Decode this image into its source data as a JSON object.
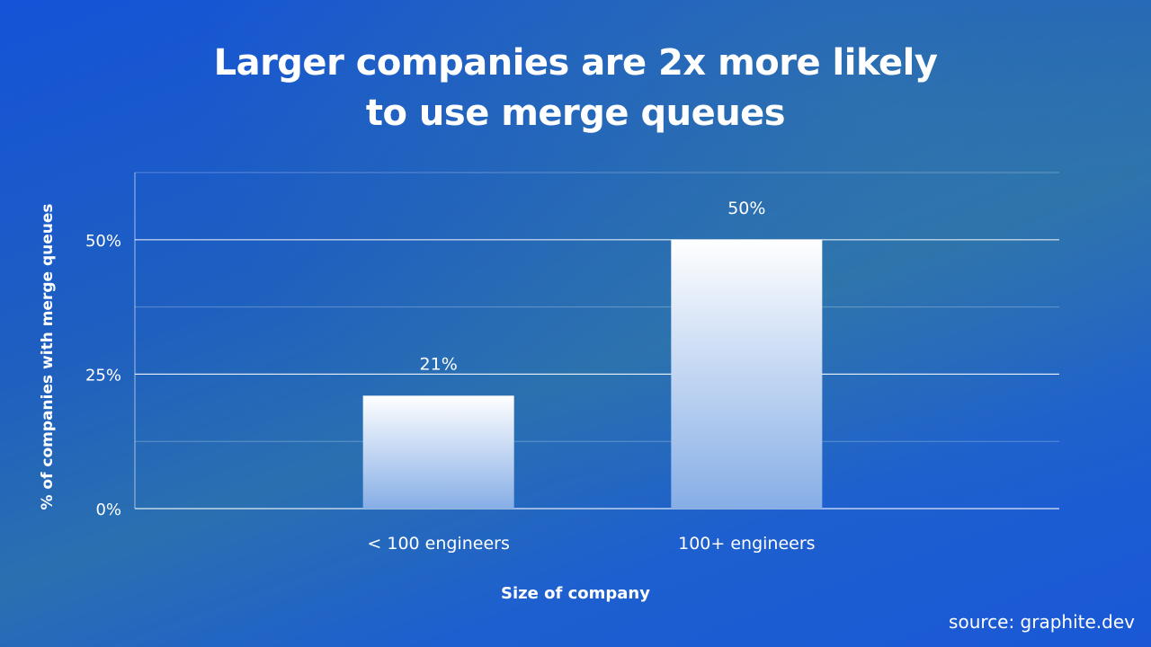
{
  "chart_data": {
    "type": "bar",
    "title_lines": [
      "Larger companies are 2x more likely",
      "to use merge queues"
    ],
    "categories": [
      "< 100 engineers",
      "100+ engineers"
    ],
    "values": [
      21,
      50
    ],
    "value_labels": [
      "21%",
      "50%"
    ],
    "ylabel": "% of companies with merge queues",
    "xlabel": "Size of company",
    "ylim": [
      0,
      62.5
    ],
    "yticks": [
      0,
      25,
      50
    ],
    "ytick_labels": [
      "0%",
      "25%",
      "50%"
    ],
    "minor_gridlines": [
      12.5,
      37.5,
      62.5
    ],
    "grid": true,
    "bar_color_top": "#ffffff",
    "bar_color_bottom": "#86aee6"
  },
  "source": "source: graphite.dev",
  "colors": {
    "background_start": "#1553d8",
    "background_mid": "#2a70b0",
    "text": "#ffffff"
  }
}
